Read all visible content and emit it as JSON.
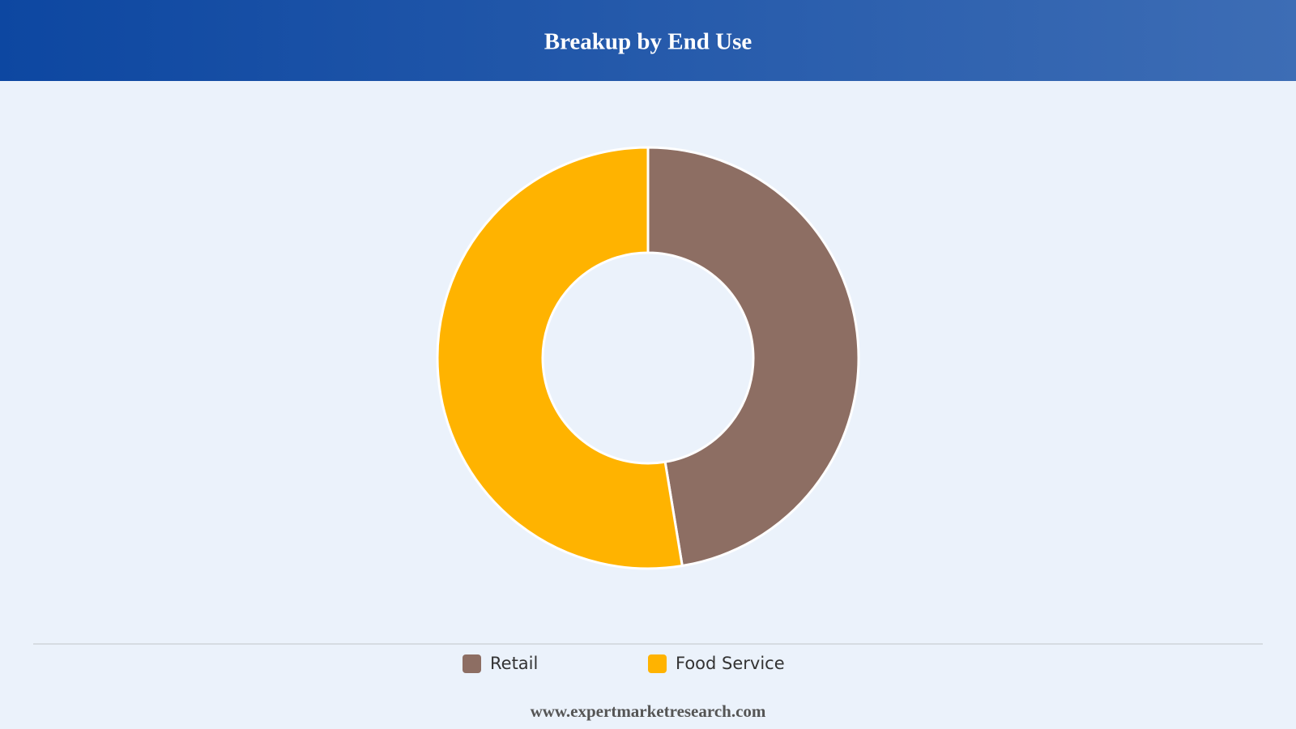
{
  "chart_data": {
    "type": "donut",
    "title": "Breakup by End Use",
    "categories": [
      "Retail",
      "Food Service"
    ],
    "values": [
      47.4,
      52.6
    ],
    "colors": [
      "#8d6e63",
      "#ffb300"
    ],
    "footer": "www.expertmarketresearch.com"
  }
}
